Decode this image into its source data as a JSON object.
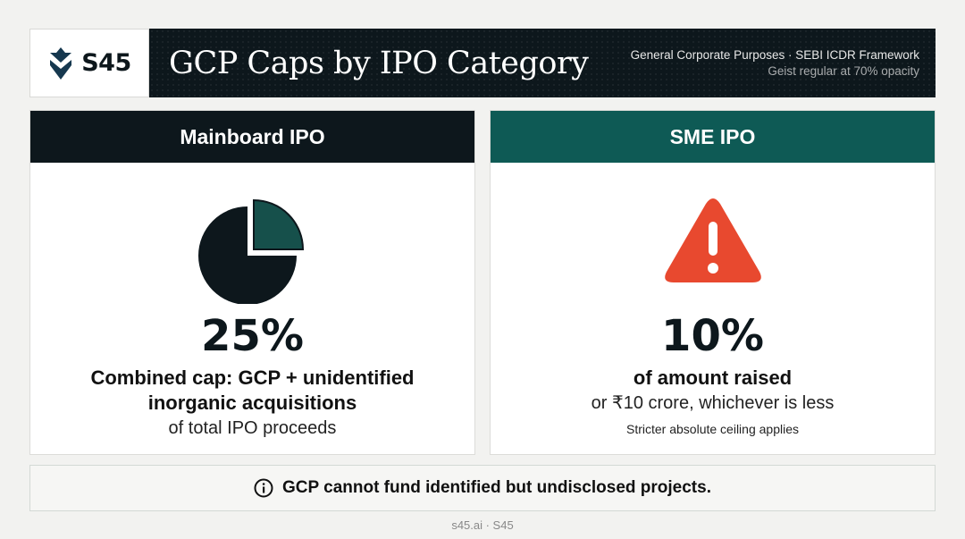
{
  "header": {
    "logo_text": "S45",
    "title": "GCP Caps by IPO Category",
    "subtitle_1": "General Corporate Purposes · SEBI ICDR Framework",
    "subtitle_2": "Geist regular at 70% opacity"
  },
  "cards": [
    {
      "heading": "Mainboard IPO",
      "icon": "pie-chart-icon",
      "value": "25%",
      "share_highlighted": 0.25,
      "line_1": "Combined cap: GCP + unidentified",
      "line_2": "inorganic acquisitions",
      "line_3": "of total IPO proceeds",
      "header_color": "#0d171c",
      "accent_color": "#16504b"
    },
    {
      "heading": "SME IPO",
      "icon": "warning-icon",
      "value": "10%",
      "line_1": "of amount raised",
      "line_2": "or ₹10 crore, whichever is less",
      "line_3": "Stricter absolute ceiling applies",
      "header_color": "#0e5a55",
      "accent_color": "#e8492f"
    }
  ],
  "note": {
    "icon": "info-icon",
    "text": "GCP cannot fund identified but undisclosed projects."
  },
  "footer": {
    "credit": "s45.ai · S45"
  }
}
